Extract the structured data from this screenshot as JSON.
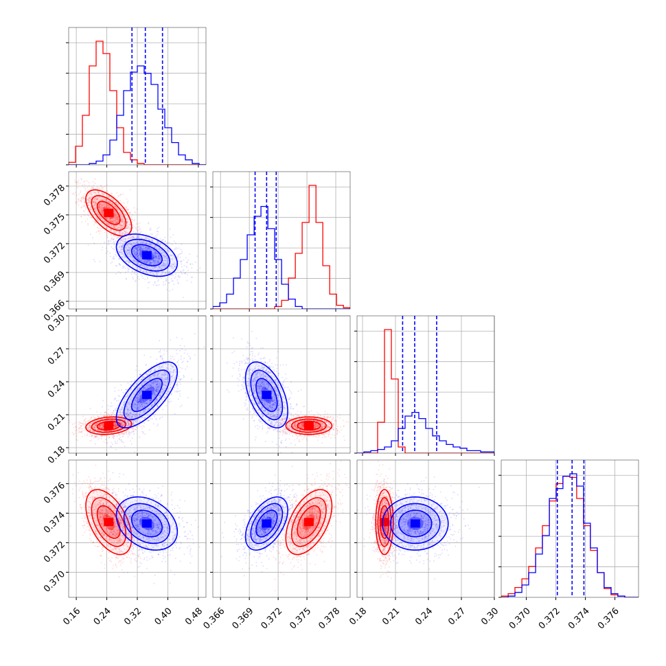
{
  "chart_data": {
    "type": "corner",
    "colors": {
      "red": "#ff0000",
      "blue": "#0000ff",
      "grid": "#b0b0b0",
      "frame": "#808080"
    },
    "parameters": [
      {
        "range": [
          0.14,
          0.5
        ],
        "ticks": [
          "0.16",
          "0.24",
          "0.32",
          "0.40",
          "0.48"
        ],
        "tick_values": [
          0.16,
          0.24,
          0.32,
          0.4,
          0.48
        ]
      },
      {
        "range": [
          0.3652,
          0.3795
        ],
        "ticks": [
          "0.366",
          "0.369",
          "0.372",
          "0.375",
          "0.378"
        ],
        "tick_values": [
          0.366,
          0.369,
          0.372,
          0.375,
          0.378
        ]
      },
      {
        "range": [
          0.175,
          0.3
        ],
        "ticks": [
          "0.18",
          "0.21",
          "0.24",
          "0.27",
          "0.30"
        ],
        "tick_values": [
          0.18,
          0.21,
          0.24,
          0.27,
          0.3
        ]
      },
      {
        "range": [
          0.3683,
          0.3776
        ],
        "ticks": [
          "0.370",
          "0.372",
          "0.374",
          "0.376"
        ],
        "tick_values": [
          0.37,
          0.372,
          0.374,
          0.376
        ]
      }
    ],
    "series": [
      {
        "color": "red",
        "mean": [
          0.245,
          0.3752,
          0.2,
          0.3734
        ],
        "std": [
          0.03,
          0.0012,
          0.004,
          0.0011
        ],
        "corr": [
          [
            1,
            -0.6,
            0.2,
            -0.5
          ],
          [
            -0.6,
            1,
            0,
            0.5
          ],
          [
            0.2,
            0,
            1,
            0
          ],
          [
            -0.5,
            0.5,
            0,
            1
          ]
        ]
      },
      {
        "color": "blue",
        "mean": [
          0.345,
          0.3708,
          0.228,
          0.3733
        ],
        "std": [
          0.04,
          0.0011,
          0.015,
          0.0009
        ],
        "corr": [
          [
            1,
            -0.4,
            0.7,
            -0.3
          ],
          [
            -0.4,
            1,
            -0.5,
            0.5
          ],
          [
            0.7,
            -0.5,
            1,
            0
          ],
          [
            -0.3,
            0.5,
            0,
            1
          ]
        ]
      }
    ],
    "histograms": [
      {
        "edges": [
          0.14,
          0.158,
          0.176,
          0.194,
          0.212,
          0.23,
          0.248,
          0.266,
          0.284,
          0.302,
          0.32,
          0.338,
          0.356,
          0.374,
          0.392,
          0.41,
          0.428,
          0.446,
          0.464,
          0.482,
          0.5
        ],
        "red": [
          2,
          15,
          40,
          80,
          100,
          90,
          60,
          30,
          10,
          4,
          1,
          0,
          0,
          0,
          0,
          0,
          0,
          0,
          0,
          0
        ],
        "blue": [
          0,
          0,
          0,
          1,
          3,
          8,
          20,
          40,
          60,
          75,
          80,
          74,
          65,
          45,
          30,
          18,
          8,
          4,
          1,
          0
        ]
      },
      {
        "edges": [
          0.3652,
          0.36592,
          0.36663,
          0.36735,
          0.36806,
          0.36878,
          0.3695,
          0.37021,
          0.37093,
          0.37164,
          0.37236,
          0.37307,
          0.37379,
          0.3745,
          0.37522,
          0.37594,
          0.37665,
          0.37737,
          0.37808,
          0.3788,
          0.3795
        ],
        "red": [
          0,
          0,
          0,
          0,
          0,
          0,
          0,
          0,
          0,
          2,
          7,
          25,
          45,
          70,
          100,
          70,
          35,
          12,
          3,
          1
        ],
        "blue": [
          2,
          5,
          12,
          25,
          40,
          60,
          75,
          83,
          65,
          40,
          20,
          8,
          2,
          0,
          0,
          0,
          0,
          0,
          0,
          0
        ]
      },
      {
        "edges": [
          0.175,
          0.18125,
          0.1875,
          0.19375,
          0.2,
          0.20625,
          0.2125,
          0.21875,
          0.225,
          0.23125,
          0.2375,
          0.24375,
          0.25,
          0.25625,
          0.2625,
          0.26875,
          0.275,
          0.28125,
          0.2875,
          0.29375,
          0.3
        ],
        "red": [
          0,
          0,
          0,
          25,
          100,
          60,
          5,
          0,
          0,
          0,
          0,
          0,
          0,
          0,
          0,
          0,
          0,
          0,
          0,
          0
        ],
        "blue": [
          0,
          1,
          2,
          3,
          5,
          10,
          20,
          30,
          33,
          28,
          20,
          14,
          10,
          7,
          5,
          4,
          2,
          2,
          1,
          1
        ]
      },
      {
        "edges": [
          0.3683,
          0.36877,
          0.36923,
          0.3697,
          0.37016,
          0.37063,
          0.37109,
          0.37156,
          0.37202,
          0.37248,
          0.37295,
          0.37341,
          0.37388,
          0.37434,
          0.37481,
          0.37527,
          0.37574,
          0.3762,
          0.37667,
          0.3776
        ],
        "red": [
          1,
          3,
          8,
          15,
          25,
          40,
          58,
          78,
          92,
          98,
          97,
          80,
          58,
          38,
          20,
          7,
          2,
          1,
          0
        ],
        "blue": [
          0,
          1,
          4,
          10,
          20,
          35,
          50,
          80,
          88,
          98,
          100,
          90,
          60,
          40,
          20,
          8,
          3,
          1,
          0
        ]
      }
    ],
    "quantiles_blue": [
      [
        0.306,
        0.341,
        0.386
      ],
      [
        0.3696,
        0.3708,
        0.3718
      ],
      [
        0.2165,
        0.2275,
        0.2475
      ],
      [
        0.3721,
        0.3731,
        0.3739
      ]
    ]
  }
}
